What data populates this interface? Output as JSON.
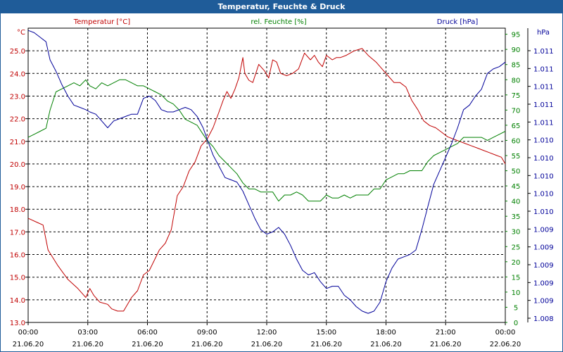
{
  "window": {
    "title": "Temperatur, Feuchte & Druck"
  },
  "colors": {
    "titlebar": "#1f5c99",
    "temperature": "#c00000",
    "humidity": "#008000",
    "pressure": "#000099",
    "grid": "#000000"
  },
  "chart_data": {
    "type": "line",
    "title": "Temperatur, Feuchte & Druck",
    "grid": true,
    "x": {
      "range_hours": [
        0,
        24
      ],
      "tick_times": [
        "00:00",
        "03:00",
        "06:00",
        "09:00",
        "12:00",
        "15:00",
        "18:00",
        "21:00",
        "00:00"
      ],
      "tick_dates": [
        "21.06.20",
        "21.06.20",
        "21.06.20",
        "21.06.20",
        "21.06.20",
        "21.06.20",
        "21.06.20",
        "21.06.20",
        "22.06.20"
      ]
    },
    "axes": {
      "temperature": {
        "label": "Temperatur [°C]",
        "unit": "°C",
        "range": [
          13.0,
          26.0
        ],
        "ticks": [
          "25.0",
          "24.0",
          "23.0",
          "22.0",
          "21.0",
          "20.0",
          "19.0",
          "18.0",
          "17.0",
          "16.0",
          "15.0",
          "14.0",
          "13.0"
        ]
      },
      "humidity": {
        "label": "rel. Feuchte [%]",
        "unit": "%",
        "range": [
          0,
          97
        ],
        "ticks": [
          "95",
          "90",
          "85",
          "80",
          "75",
          "70",
          "65",
          "60",
          "55",
          "50",
          "45",
          "40",
          "35",
          "30",
          "25",
          "20",
          "15",
          "10",
          "5",
          "0"
        ]
      },
      "pressure": {
        "label": "Druck [hPa]",
        "unit": "hPa",
        "ticks": [
          "1.011",
          "1.011",
          "1.011",
          "1.011",
          "1.011",
          "1.010",
          "1.010",
          "1.010",
          "1.010",
          "1.010",
          "1.009",
          "1.009",
          "1.009",
          "1.009",
          "1.009",
          "1.008"
        ]
      }
    },
    "series": [
      {
        "name": "Temperatur [°C]",
        "color": "#c00000",
        "x": [
          0,
          0.5,
          0.75,
          1.0,
          1.5,
          2.0,
          2.5,
          2.9,
          3.1,
          3.3,
          3.6,
          4.0,
          4.2,
          4.5,
          4.8,
          5.2,
          5.5,
          5.8,
          6.1,
          6.6,
          6.9,
          7.2,
          7.5,
          7.8,
          8.1,
          8.4,
          8.7,
          9.0,
          9.3,
          9.6,
          9.8,
          10.0,
          10.2,
          10.4,
          10.6,
          10.8,
          10.9,
          11.1,
          11.3,
          11.6,
          11.9,
          12.1,
          12.3,
          12.5,
          12.7,
          13.0,
          13.3,
          13.6,
          13.9,
          14.2,
          14.4,
          14.6,
          14.8,
          15.0,
          15.3,
          15.5,
          15.7,
          16.0,
          16.4,
          16.8,
          17.1,
          17.5,
          17.8,
          18.1,
          18.4,
          18.7,
          19.0,
          19.3,
          19.6,
          19.9,
          20.2,
          20.5,
          20.8,
          21.1,
          21.4,
          21.7,
          22.0,
          22.3,
          22.6,
          22.9,
          23.2,
          23.5,
          23.8,
          24.0
        ],
        "values": [
          17.6,
          17.4,
          17.3,
          16.2,
          15.5,
          14.9,
          14.5,
          14.1,
          14.5,
          14.2,
          13.9,
          13.8,
          13.6,
          13.5,
          13.5,
          14.1,
          14.4,
          15.1,
          15.3,
          16.2,
          16.5,
          17.1,
          18.6,
          19.0,
          19.7,
          20.1,
          20.8,
          21.1,
          21.6,
          22.3,
          22.8,
          23.2,
          22.9,
          23.3,
          23.8,
          24.7,
          24.0,
          23.7,
          23.6,
          24.4,
          24.1,
          23.8,
          24.6,
          24.5,
          24.0,
          23.9,
          24.0,
          24.2,
          24.9,
          24.6,
          24.8,
          24.5,
          24.3,
          24.8,
          24.6,
          24.7,
          24.7,
          24.8,
          25.0,
          25.1,
          24.8,
          24.5,
          24.2,
          23.9,
          23.6,
          23.6,
          23.4,
          22.8,
          22.4,
          21.9,
          21.7,
          21.6,
          21.4,
          21.2,
          21.1,
          21.0,
          20.9,
          20.8,
          20.7,
          20.6,
          20.5,
          20.4,
          20.3,
          20.0
        ]
      },
      {
        "name": "rel. Feuchte [%]",
        "color": "#008000",
        "x": [
          0,
          0.3,
          0.6,
          0.9,
          1.1,
          1.4,
          1.7,
          2.0,
          2.3,
          2.6,
          2.9,
          3.1,
          3.4,
          3.7,
          4.0,
          4.3,
          4.6,
          4.9,
          5.2,
          5.5,
          5.8,
          6.1,
          6.4,
          6.7,
          7.0,
          7.3,
          7.6,
          7.9,
          8.2,
          8.5,
          8.8,
          9.0,
          9.3,
          9.6,
          9.9,
          10.2,
          10.5,
          10.8,
          11.1,
          11.4,
          11.7,
          12.0,
          12.3,
          12.6,
          12.9,
          13.2,
          13.5,
          13.8,
          14.1,
          14.4,
          14.7,
          15.0,
          15.3,
          15.6,
          15.9,
          16.2,
          16.5,
          16.8,
          17.1,
          17.4,
          17.7,
          18.0,
          18.3,
          18.6,
          18.9,
          19.2,
          19.5,
          19.8,
          20.1,
          20.4,
          20.7,
          21.0,
          21.3,
          21.6,
          21.9,
          22.2,
          22.5,
          22.8,
          23.1,
          23.4,
          23.7,
          24.0
        ],
        "values": [
          61,
          62,
          63,
          64,
          70,
          76,
          77,
          78,
          79,
          78,
          80,
          78,
          77,
          79,
          78,
          79,
          80,
          80,
          79,
          78,
          78,
          77,
          76,
          75,
          73,
          72,
          70,
          67,
          66,
          65,
          62,
          60,
          58,
          55,
          53,
          51,
          49,
          46,
          44,
          44,
          43,
          43,
          43,
          40,
          42,
          42,
          43,
          42,
          40,
          40,
          40,
          42,
          41,
          41,
          42,
          41,
          42,
          42,
          42,
          44,
          44,
          47,
          48,
          49,
          49,
          50,
          50,
          50,
          53,
          55,
          56,
          57,
          58,
          59,
          61,
          61,
          61,
          61,
          60,
          61,
          62,
          63
        ]
      },
      {
        "name": "Druck [hPa]",
        "color": "#000099",
        "x": [
          0,
          0.3,
          0.6,
          0.9,
          1.1,
          1.4,
          1.7,
          2.0,
          2.3,
          2.6,
          2.9,
          3.1,
          3.4,
          3.7,
          4.0,
          4.3,
          4.6,
          4.9,
          5.2,
          5.5,
          5.8,
          6.1,
          6.4,
          6.7,
          7.0,
          7.3,
          7.6,
          7.9,
          8.2,
          8.5,
          8.8,
          9.0,
          9.3,
          9.6,
          9.9,
          10.2,
          10.5,
          10.8,
          11.1,
          11.4,
          11.7,
          12.0,
          12.3,
          12.6,
          12.9,
          13.2,
          13.5,
          13.8,
          14.1,
          14.4,
          14.7,
          15.0,
          15.3,
          15.6,
          15.9,
          16.2,
          16.5,
          16.8,
          17.1,
          17.4,
          17.7,
          18.0,
          18.3,
          18.6,
          18.9,
          19.2,
          19.5,
          19.8,
          20.1,
          20.4,
          20.7,
          21.0,
          21.3,
          21.6,
          21.9,
          22.2,
          22.5,
          22.8,
          23.1,
          23.4,
          23.7,
          24.0
        ],
        "values": [
          25.9,
          25.8,
          25.6,
          25.4,
          24.6,
          24.1,
          23.5,
          23.0,
          22.6,
          22.5,
          22.4,
          22.3,
          22.2,
          21.9,
          21.6,
          21.9,
          22.0,
          22.1,
          22.2,
          22.2,
          22.9,
          23.0,
          22.8,
          22.4,
          22.3,
          22.3,
          22.4,
          22.5,
          22.4,
          22.1,
          21.6,
          21.1,
          20.4,
          19.9,
          19.4,
          19.3,
          19.2,
          18.8,
          18.2,
          17.6,
          17.1,
          16.9,
          17.0,
          17.2,
          16.9,
          16.4,
          15.8,
          15.3,
          15.1,
          15.2,
          14.8,
          14.5,
          14.6,
          14.6,
          14.2,
          14.0,
          13.7,
          13.5,
          13.4,
          13.5,
          13.9,
          14.8,
          15.4,
          15.8,
          15.9,
          16.0,
          16.2,
          17.1,
          18.1,
          19.1,
          19.7,
          20.3,
          20.9,
          21.6,
          22.4,
          22.6,
          23.0,
          23.3,
          24.0,
          24.2,
          24.3,
          24.5
        ]
      }
    ]
  }
}
